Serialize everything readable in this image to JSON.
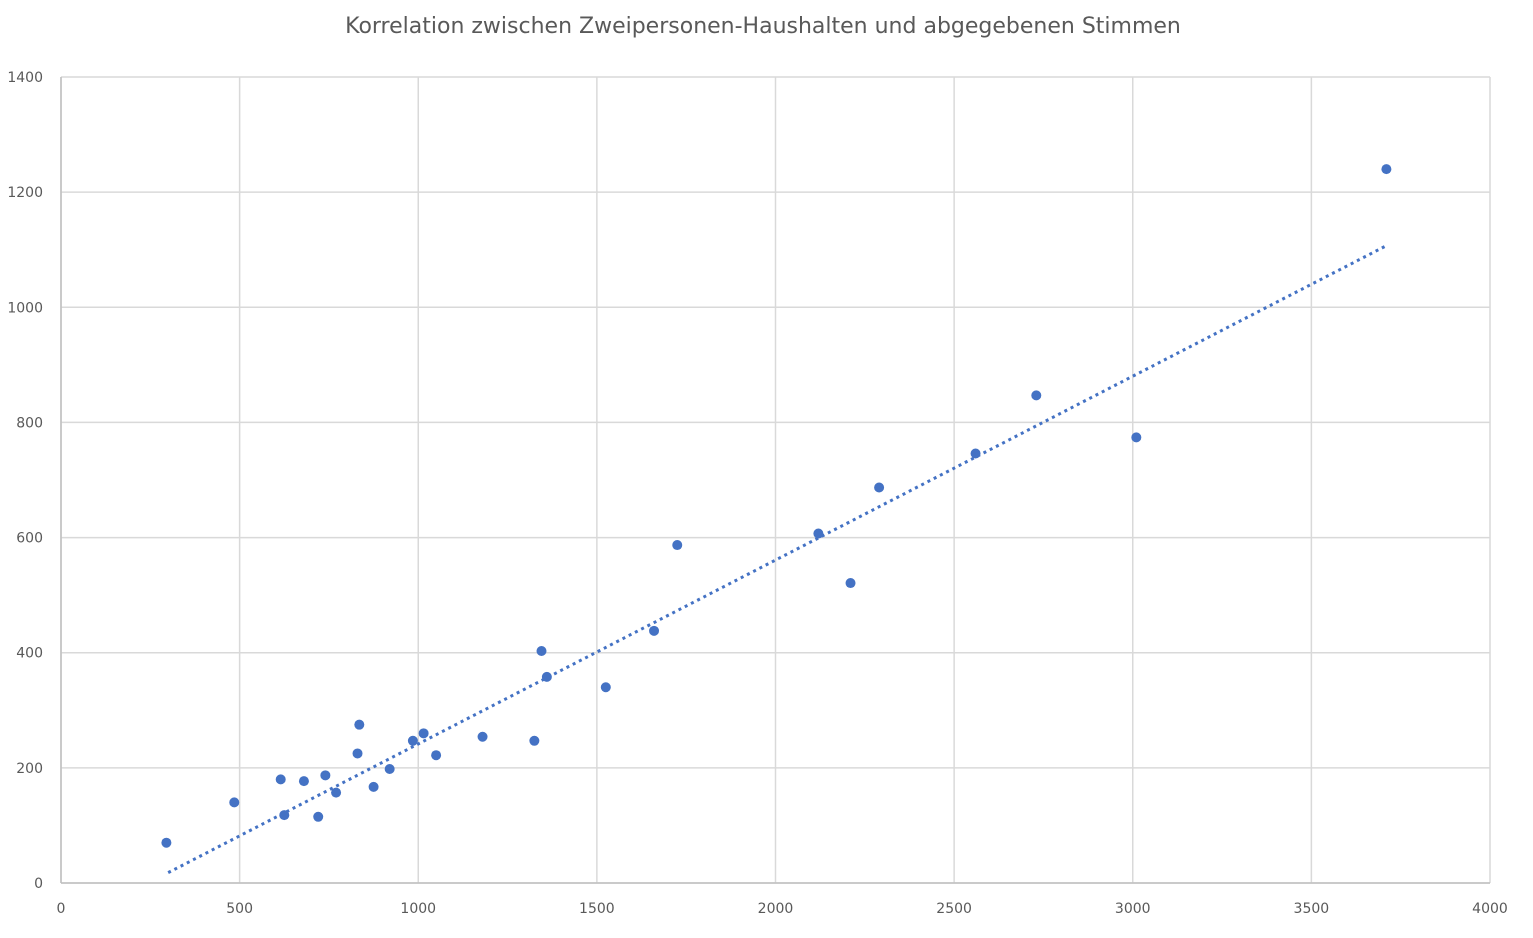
{
  "chart_data": {
    "type": "scatter",
    "title": "Korrelation zwischen Zweipersonen-Haushalten und abgegebenen Stimmen",
    "xlabel": "",
    "ylabel": "",
    "xlim": [
      0,
      4000
    ],
    "ylim": [
      0,
      1400
    ],
    "x_ticks": [
      0,
      500,
      1000,
      1500,
      2000,
      2500,
      3000,
      3500,
      4000
    ],
    "y_ticks": [
      0,
      200,
      400,
      600,
      800,
      1000,
      1200,
      1400
    ],
    "grid": true,
    "legend": "none",
    "marker_color": "#4472c4",
    "trendline": {
      "kind": "linear",
      "style": "dotted",
      "color": "#4472c4",
      "from": {
        "x": 300,
        "y": 18
      },
      "to": {
        "x": 3710,
        "y": 1107
      }
    },
    "series": [
      {
        "points": [
          {
            "x": 295,
            "y": 70
          },
          {
            "x": 485,
            "y": 140
          },
          {
            "x": 615,
            "y": 180
          },
          {
            "x": 625,
            "y": 118
          },
          {
            "x": 680,
            "y": 177
          },
          {
            "x": 720,
            "y": 115
          },
          {
            "x": 740,
            "y": 187
          },
          {
            "x": 770,
            "y": 157
          },
          {
            "x": 830,
            "y": 225
          },
          {
            "x": 835,
            "y": 275
          },
          {
            "x": 875,
            "y": 167
          },
          {
            "x": 920,
            "y": 198
          },
          {
            "x": 985,
            "y": 247
          },
          {
            "x": 1015,
            "y": 260
          },
          {
            "x": 1050,
            "y": 222
          },
          {
            "x": 1180,
            "y": 254
          },
          {
            "x": 1325,
            "y": 247
          },
          {
            "x": 1345,
            "y": 403
          },
          {
            "x": 1360,
            "y": 358
          },
          {
            "x": 1525,
            "y": 340
          },
          {
            "x": 1660,
            "y": 438
          },
          {
            "x": 1725,
            "y": 587
          },
          {
            "x": 2120,
            "y": 607
          },
          {
            "x": 2210,
            "y": 521
          },
          {
            "x": 2290,
            "y": 687
          },
          {
            "x": 2560,
            "y": 746
          },
          {
            "x": 2730,
            "y": 847
          },
          {
            "x": 3010,
            "y": 774
          },
          {
            "x": 3710,
            "y": 1240
          }
        ]
      }
    ]
  }
}
